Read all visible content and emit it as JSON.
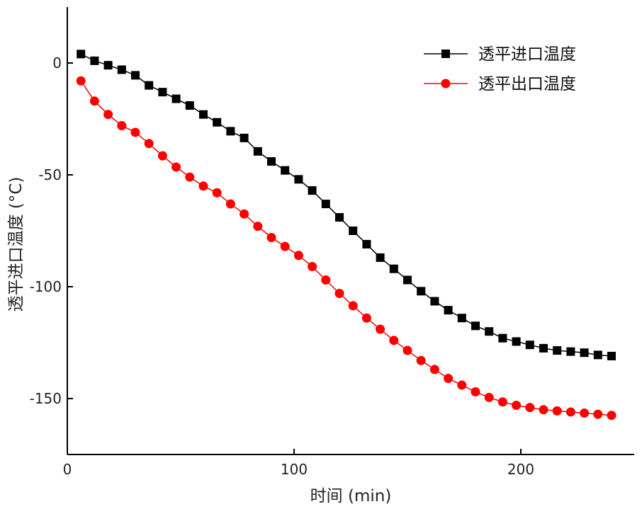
{
  "chart_data": {
    "type": "line",
    "title": "",
    "xlabel": "时间 (min)",
    "ylabel": "透平进口温度 (°C)",
    "xlim": [
      0,
      250
    ],
    "ylim": [
      -175,
      25
    ],
    "x_ticks": [
      0,
      100,
      200
    ],
    "x_tick_labels": [
      "0",
      "100",
      "200"
    ],
    "y_ticks": [
      0,
      -50,
      -100,
      -150
    ],
    "y_tick_labels": [
      "0",
      "-50",
      "-100",
      "-150"
    ],
    "grid": false,
    "legend_position": "top-right",
    "x": [
      6,
      12,
      18,
      24,
      30,
      36,
      42,
      48,
      54,
      60,
      66,
      72,
      78,
      84,
      90,
      96,
      102,
      108,
      114,
      120,
      126,
      132,
      138,
      144,
      150,
      156,
      162,
      168,
      174,
      180,
      186,
      192,
      198,
      204,
      210,
      216,
      222,
      228,
      234,
      240
    ],
    "series": [
      {
        "name": "透平进口温度",
        "color": "#000000",
        "marker": "square",
        "values": [
          4,
          1,
          -1,
          -3,
          -5.5,
          -10,
          -13,
          -16,
          -19,
          -23,
          -26.5,
          -30.5,
          -33.5,
          -39.5,
          -44,
          -48,
          -52,
          -57,
          -63,
          -69,
          -75,
          -81,
          -87,
          -92,
          -97,
          -102,
          -106.5,
          -110.5,
          -114,
          -117.5,
          -120,
          -123,
          -124.5,
          -126,
          -127.5,
          -128.5,
          -129,
          -129.5,
          -130.5,
          -131
        ]
      },
      {
        "name": "透平出口温度",
        "color": "#ff0000",
        "marker": "circle",
        "values": [
          -8,
          -17,
          -23,
          -28,
          -31,
          -36,
          -41.5,
          -46.5,
          -51,
          -55,
          -58,
          -63,
          -67.5,
          -73,
          -78,
          -82,
          -86,
          -91,
          -97,
          -103,
          -108.5,
          -114,
          -119,
          -124,
          -128.5,
          -133,
          -137,
          -141,
          -144,
          -147,
          -149.5,
          -151.5,
          -153,
          -154,
          -155,
          -155.5,
          -156,
          -156.5,
          -157,
          -157.5
        ]
      }
    ]
  }
}
